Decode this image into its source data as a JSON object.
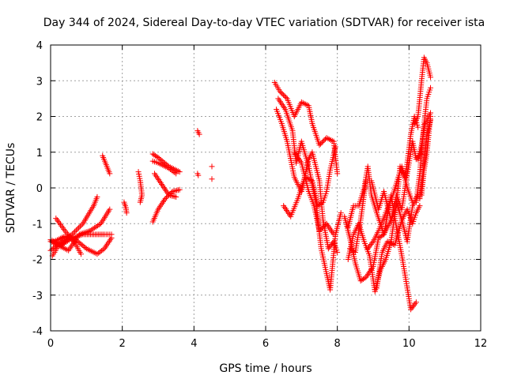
{
  "chart_data": {
    "type": "scatter",
    "title": "Day 344 of 2024, Sidereal Day-to-day VTEC variation (SDTVAR) for receiver ista",
    "xlabel": "GPS time / hours",
    "ylabel": "SDTVAR / TECUs",
    "xlim": [
      0,
      12
    ],
    "ylim": [
      -4,
      4
    ],
    "xticks": [
      0,
      2,
      4,
      6,
      8,
      10,
      12
    ],
    "yticks": [
      -4,
      -3,
      -2,
      -1,
      0,
      1,
      2,
      3,
      4
    ],
    "grid": true,
    "marker": "+",
    "color": "#ff0000",
    "tracks": [
      [
        [
          0.0,
          -1.75
        ],
        [
          0.3,
          -1.5
        ],
        [
          0.6,
          -1.3
        ],
        [
          0.9,
          -1.0
        ],
        [
          1.2,
          -0.5
        ],
        [
          1.3,
          -0.25
        ]
      ],
      [
        [
          0.0,
          -1.45
        ],
        [
          0.3,
          -1.6
        ],
        [
          0.6,
          -1.4
        ],
        [
          0.9,
          -1.3
        ],
        [
          1.2,
          -1.3
        ],
        [
          1.5,
          -1.3
        ],
        [
          1.7,
          -1.3
        ]
      ],
      [
        [
          0.0,
          -1.5
        ],
        [
          0.2,
          -1.6
        ],
        [
          0.5,
          -1.75
        ],
        [
          0.8,
          -1.3
        ],
        [
          1.1,
          -1.2
        ],
        [
          1.4,
          -1.0
        ],
        [
          1.65,
          -0.6
        ]
      ],
      [
        [
          0.1,
          -1.5
        ],
        [
          0.4,
          -1.35
        ],
        [
          0.7,
          -1.45
        ],
        [
          1.0,
          -1.7
        ],
        [
          1.3,
          -1.85
        ],
        [
          1.5,
          -1.7
        ],
        [
          1.7,
          -1.4
        ]
      ],
      [
        [
          0.15,
          -0.85
        ],
        [
          0.4,
          -1.2
        ],
        [
          0.65,
          -1.5
        ],
        [
          0.85,
          -1.85
        ]
      ],
      [
        [
          0.05,
          -1.9
        ],
        [
          0.2,
          -1.65
        ],
        [
          0.4,
          -1.5
        ],
        [
          0.55,
          -1.4
        ]
      ],
      [
        [
          1.45,
          0.9
        ],
        [
          1.55,
          0.65
        ],
        [
          1.65,
          0.4
        ]
      ],
      [
        [
          2.05,
          -0.4
        ],
        [
          2.1,
          -0.55
        ],
        [
          2.12,
          -0.7
        ]
      ],
      [
        [
          2.45,
          0.45
        ],
        [
          2.5,
          0.2
        ],
        [
          2.55,
          -0.2
        ],
        [
          2.5,
          -0.4
        ]
      ],
      [
        [
          2.85,
          0.95
        ],
        [
          3.0,
          0.85
        ],
        [
          3.3,
          0.6
        ],
        [
          3.6,
          0.45
        ]
      ],
      [
        [
          2.85,
          0.75
        ],
        [
          3.0,
          0.7
        ],
        [
          3.3,
          0.55
        ],
        [
          3.5,
          0.4
        ]
      ],
      [
        [
          2.9,
          0.4
        ],
        [
          3.1,
          0.1
        ],
        [
          3.3,
          -0.2
        ],
        [
          3.5,
          -0.25
        ]
      ],
      [
        [
          2.85,
          -0.95
        ],
        [
          3.0,
          -0.6
        ],
        [
          3.2,
          -0.3
        ],
        [
          3.4,
          -0.1
        ],
        [
          3.6,
          -0.05
        ]
      ],
      [
        [
          4.1,
          1.6
        ],
        [
          4.15,
          1.5
        ]
      ],
      [
        [
          4.1,
          0.4
        ],
        [
          4.12,
          0.35
        ]
      ],
      [
        [
          4.5,
          0.6
        ]
      ],
      [
        [
          4.5,
          0.25
        ]
      ],
      [
        [
          6.25,
          2.95
        ],
        [
          6.4,
          2.7
        ],
        [
          6.6,
          2.5
        ],
        [
          6.8,
          2.0
        ],
        [
          7.0,
          2.4
        ],
        [
          7.2,
          2.3
        ],
        [
          7.3,
          1.8
        ],
        [
          7.5,
          1.2
        ],
        [
          7.7,
          1.4
        ],
        [
          7.9,
          1.3
        ],
        [
          8.0,
          0.4
        ]
      ],
      [
        [
          6.3,
          2.2
        ],
        [
          6.45,
          1.8
        ],
        [
          6.6,
          1.3
        ],
        [
          6.8,
          0.3
        ],
        [
          7.0,
          -0.1
        ],
        [
          7.2,
          0.8
        ],
        [
          7.3,
          1.0
        ],
        [
          7.5,
          0.2
        ],
        [
          7.6,
          -0.9
        ],
        [
          7.75,
          -1.7
        ],
        [
          7.9,
          -1.5
        ],
        [
          8.0,
          -1.8
        ]
      ],
      [
        [
          6.35,
          2.5
        ],
        [
          6.55,
          2.2
        ],
        [
          6.75,
          1.6
        ],
        [
          6.85,
          0.7
        ],
        [
          7.0,
          1.3
        ],
        [
          7.2,
          0.6
        ],
        [
          7.4,
          -0.4
        ],
        [
          7.55,
          -1.7
        ],
        [
          7.7,
          -2.4
        ],
        [
          7.8,
          -2.85
        ],
        [
          7.95,
          -1.3
        ],
        [
          8.1,
          -0.7
        ]
      ],
      [
        [
          6.5,
          -0.5
        ],
        [
          6.7,
          -0.8
        ],
        [
          6.9,
          -0.3
        ],
        [
          7.1,
          0.3
        ],
        [
          7.3,
          0.2
        ],
        [
          7.45,
          -0.5
        ],
        [
          7.6,
          -0.4
        ],
        [
          7.7,
          -0.1
        ],
        [
          7.8,
          0.5
        ],
        [
          7.95,
          1.15
        ]
      ],
      [
        [
          6.8,
          1.0
        ],
        [
          7.0,
          0.7
        ],
        [
          7.2,
          -0.1
        ],
        [
          7.35,
          -0.5
        ],
        [
          7.5,
          -1.2
        ],
        [
          7.7,
          -1.0
        ],
        [
          7.9,
          -1.3
        ]
      ],
      [
        [
          8.2,
          -0.8
        ],
        [
          8.35,
          -1.4
        ],
        [
          8.5,
          -2.1
        ],
        [
          8.65,
          -2.6
        ],
        [
          8.8,
          -2.5
        ],
        [
          9.0,
          -2.2
        ],
        [
          9.15,
          -1.4
        ],
        [
          9.3,
          -1.3
        ],
        [
          9.5,
          -0.2
        ],
        [
          9.65,
          -1.1
        ],
        [
          9.8,
          -1.9
        ],
        [
          9.95,
          -2.8
        ],
        [
          10.05,
          -3.4
        ],
        [
          10.2,
          -3.2
        ]
      ],
      [
        [
          8.3,
          -2.0
        ],
        [
          8.45,
          -1.3
        ],
        [
          8.6,
          -1.0
        ],
        [
          8.75,
          -1.5
        ],
        [
          8.9,
          -1.9
        ],
        [
          9.05,
          -2.9
        ],
        [
          9.2,
          -2.3
        ],
        [
          9.35,
          -2.0
        ],
        [
          9.5,
          -1.5
        ],
        [
          9.65,
          -0.4
        ],
        [
          9.8,
          -0.9
        ],
        [
          9.95,
          -1.5
        ],
        [
          10.1,
          -0.5
        ],
        [
          10.25,
          -0.2
        ]
      ],
      [
        [
          8.3,
          -1.1
        ],
        [
          8.45,
          -0.5
        ],
        [
          8.6,
          -0.5
        ],
        [
          8.75,
          0.0
        ],
        [
          8.85,
          0.6
        ],
        [
          8.95,
          -0.2
        ],
        [
          9.1,
          -0.7
        ],
        [
          9.3,
          -1.3
        ],
        [
          9.5,
          -0.9
        ],
        [
          9.65,
          -0.2
        ],
        [
          9.8,
          -0.6
        ],
        [
          9.95,
          0.4
        ],
        [
          10.1,
          1.3
        ],
        [
          10.2,
          0.8
        ],
        [
          10.35,
          1.0
        ]
      ],
      [
        [
          8.35,
          -1.7
        ],
        [
          8.5,
          -1.8
        ],
        [
          8.65,
          -0.9
        ],
        [
          8.8,
          0.2
        ],
        [
          8.95,
          0.2
        ],
        [
          9.15,
          -0.6
        ],
        [
          9.3,
          -0.1
        ],
        [
          9.5,
          -0.9
        ],
        [
          9.65,
          -0.5
        ],
        [
          9.75,
          0.6
        ],
        [
          9.9,
          0.3
        ],
        [
          10.05,
          1.5
        ],
        [
          10.15,
          2.0
        ],
        [
          10.25,
          1.7
        ]
      ],
      [
        [
          8.85,
          -1.7
        ],
        [
          9.0,
          -1.5
        ],
        [
          9.15,
          -1.2
        ],
        [
          9.35,
          -0.7
        ],
        [
          9.55,
          -0.2
        ],
        [
          9.7,
          0.3
        ],
        [
          9.8,
          0.6
        ],
        [
          9.95,
          0.0
        ],
        [
          10.1,
          -0.4
        ]
      ],
      [
        [
          9.1,
          -2.8
        ],
        [
          9.25,
          -1.8
        ],
        [
          9.4,
          -1.5
        ],
        [
          9.6,
          -1.6
        ],
        [
          9.8,
          -0.9
        ],
        [
          9.95,
          -0.6
        ],
        [
          10.1,
          -1.0
        ],
        [
          10.2,
          -0.7
        ],
        [
          10.3,
          -0.5
        ]
      ],
      [
        [
          10.15,
          1.8
        ],
        [
          10.25,
          2.0
        ],
        [
          10.35,
          3.0
        ],
        [
          10.42,
          3.65
        ],
        [
          10.5,
          3.5
        ],
        [
          10.6,
          3.1
        ]
      ],
      [
        [
          10.2,
          -0.4
        ],
        [
          10.3,
          0.4
        ],
        [
          10.4,
          1.6
        ],
        [
          10.5,
          2.5
        ],
        [
          10.6,
          2.8
        ]
      ],
      [
        [
          10.25,
          0.8
        ],
        [
          10.35,
          1.2
        ],
        [
          10.45,
          1.8
        ],
        [
          10.55,
          2.0
        ],
        [
          10.6,
          2.1
        ]
      ],
      [
        [
          10.3,
          -0.3
        ],
        [
          10.4,
          0.5
        ],
        [
          10.5,
          1.5
        ],
        [
          10.6,
          1.9
        ]
      ],
      [
        [
          10.35,
          -0.2
        ],
        [
          10.42,
          0.5
        ],
        [
          10.5,
          1.0
        ],
        [
          10.6,
          2.0
        ]
      ]
    ]
  }
}
